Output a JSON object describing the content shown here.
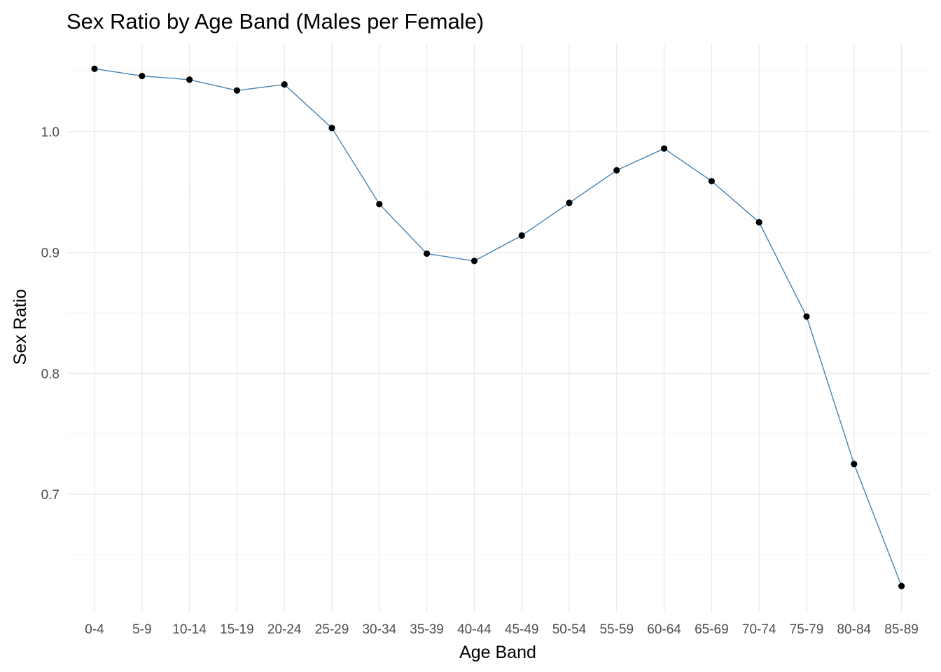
{
  "chart_data": {
    "type": "line",
    "title": "Sex Ratio by Age Band (Males per Female)",
    "xlabel": "Age Band",
    "ylabel": "Sex Ratio",
    "categories": [
      "0-4",
      "5-9",
      "10-14",
      "15-19",
      "20-24",
      "25-29",
      "30-34",
      "35-39",
      "40-44",
      "45-49",
      "50-54",
      "55-59",
      "60-64",
      "65-69",
      "70-74",
      "75-79",
      "80-84",
      "85-89"
    ],
    "series": [
      {
        "values": [
          1.052,
          1.046,
          1.043,
          1.034,
          1.039,
          1.003,
          0.94,
          0.899,
          0.893,
          0.914,
          0.941,
          0.968,
          0.986,
          0.959,
          0.925,
          0.847,
          0.725,
          0.624
        ]
      }
    ],
    "ylim": [
      0.6,
      1.065
    ],
    "yticks": [
      0.7,
      0.8,
      0.9,
      1.0
    ],
    "ytick_labels": [
      "0.7",
      "0.8",
      "0.9",
      "1.0"
    ],
    "grid": true,
    "colors": {
      "line": "#4682b4",
      "points": "#000000"
    }
  }
}
